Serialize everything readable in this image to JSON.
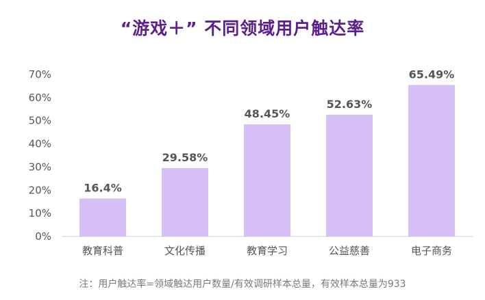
{
  "chart_data": {
    "type": "bar",
    "title": "“游戏＋” 不同领域用户触达率",
    "categories": [
      "教育科普",
      "文化传播",
      "教育学习",
      "公益慈善",
      "电子商务"
    ],
    "values": [
      16.4,
      29.58,
      48.45,
      52.63,
      65.49
    ],
    "data_labels": [
      "16.4%",
      "29.58%",
      "48.45%",
      "52.63%",
      "65.49%"
    ],
    "ylim": [
      0,
      70
    ],
    "yticks": [
      "0%",
      "10%",
      "20%",
      "30%",
      "40%",
      "50%",
      "60%",
      "70%"
    ],
    "grid": false,
    "legend": "none",
    "colors": {
      "bar": "#d5bff5",
      "title": "#5b1f8c",
      "axis": "#cfcfcf",
      "label": "#555555"
    },
    "note": "注：用户触达率=领域触达用户数量/有效调研样本总量，有效样本总量为933"
  }
}
